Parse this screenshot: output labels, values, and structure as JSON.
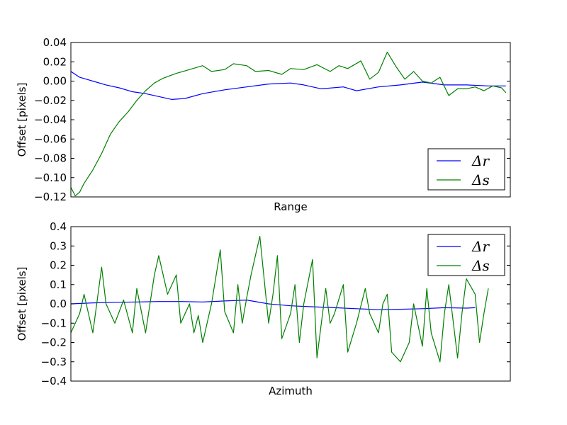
{
  "chart_data": [
    {
      "type": "line",
      "xlabel": "Range",
      "ylabel": "Offset [pixels]",
      "ylim": [
        -0.12,
        0.04
      ],
      "yticks": [
        "0.04",
        "0.02",
        "0.00",
        "−0.02",
        "−0.04",
        "−0.06",
        "−0.08",
        "−0.10",
        "−0.12"
      ],
      "xticks_visible": false,
      "legend_position": "lower-right",
      "xlim": [
        0,
        1
      ],
      "series": [
        {
          "name": "Δr",
          "color": "#0000ff",
          "x": [
            0.0,
            0.02,
            0.05,
            0.08,
            0.11,
            0.14,
            0.17,
            0.2,
            0.23,
            0.26,
            0.3,
            0.35,
            0.4,
            0.45,
            0.5,
            0.53,
            0.57,
            0.62,
            0.65,
            0.7,
            0.75,
            0.8,
            0.85,
            0.9,
            0.95,
            0.99
          ],
          "values": [
            0.01,
            0.004,
            0.0,
            -0.004,
            -0.007,
            -0.011,
            -0.013,
            -0.016,
            -0.019,
            -0.018,
            -0.013,
            -0.009,
            -0.006,
            -0.003,
            -0.002,
            -0.004,
            -0.008,
            -0.006,
            -0.01,
            -0.006,
            -0.004,
            -0.001,
            -0.004,
            -0.004,
            -0.005,
            -0.005
          ]
        },
        {
          "name": "Δs",
          "color": "#008000",
          "x": [
            0.0,
            0.01,
            0.02,
            0.03,
            0.05,
            0.07,
            0.09,
            0.11,
            0.13,
            0.15,
            0.17,
            0.19,
            0.21,
            0.24,
            0.27,
            0.3,
            0.32,
            0.35,
            0.37,
            0.4,
            0.42,
            0.45,
            0.48,
            0.5,
            0.53,
            0.56,
            0.59,
            0.61,
            0.63,
            0.66,
            0.68,
            0.7,
            0.72,
            0.74,
            0.76,
            0.78,
            0.8,
            0.82,
            0.84,
            0.86,
            0.88,
            0.9,
            0.92,
            0.94,
            0.96,
            0.98,
            0.99
          ],
          "values": [
            -0.11,
            -0.119,
            -0.115,
            -0.106,
            -0.092,
            -0.075,
            -0.055,
            -0.042,
            -0.032,
            -0.02,
            -0.01,
            -0.002,
            0.003,
            0.008,
            0.012,
            0.016,
            0.01,
            0.012,
            0.018,
            0.016,
            0.01,
            0.011,
            0.007,
            0.013,
            0.012,
            0.017,
            0.01,
            0.016,
            0.013,
            0.021,
            0.002,
            0.009,
            0.03,
            0.015,
            0.002,
            0.01,
            0.0,
            -0.002,
            0.004,
            -0.015,
            -0.008,
            -0.008,
            -0.006,
            -0.01,
            -0.005,
            -0.007,
            -0.012
          ]
        }
      ]
    },
    {
      "type": "line",
      "xlabel": "Azimuth",
      "ylabel": "Offset [pixels]",
      "ylim": [
        -0.4,
        0.4
      ],
      "yticks": [
        "0.4",
        "0.3",
        "0.2",
        "0.1",
        "0.0",
        "−0.1",
        "−0.2",
        "−0.3",
        "−0.4"
      ],
      "xticks_visible": false,
      "legend_position": "upper-right",
      "xlim": [
        0,
        1
      ],
      "series": [
        {
          "name": "Δr",
          "color": "#0000ff",
          "x": [
            0.0,
            0.05,
            0.1,
            0.15,
            0.2,
            0.25,
            0.3,
            0.35,
            0.4,
            0.45,
            0.5,
            0.55,
            0.6,
            0.65,
            0.7,
            0.75,
            0.8,
            0.85,
            0.9,
            0.92
          ],
          "values": [
            0.0,
            0.005,
            0.008,
            0.01,
            0.012,
            0.012,
            0.01,
            0.015,
            0.02,
            0.0,
            -0.01,
            -0.015,
            -0.02,
            -0.025,
            -0.03,
            -0.028,
            -0.025,
            -0.02,
            -0.022,
            -0.02
          ]
        },
        {
          "name": "Δs",
          "color": "#008000",
          "x": [
            0.0,
            0.02,
            0.03,
            0.05,
            0.07,
            0.08,
            0.1,
            0.12,
            0.14,
            0.15,
            0.17,
            0.19,
            0.2,
            0.22,
            0.24,
            0.25,
            0.27,
            0.28,
            0.29,
            0.3,
            0.32,
            0.34,
            0.35,
            0.37,
            0.38,
            0.39,
            0.4,
            0.41,
            0.43,
            0.45,
            0.46,
            0.47,
            0.48,
            0.5,
            0.51,
            0.52,
            0.53,
            0.55,
            0.56,
            0.58,
            0.59,
            0.6,
            0.62,
            0.63,
            0.65,
            0.67,
            0.68,
            0.7,
            0.71,
            0.72,
            0.73,
            0.75,
            0.77,
            0.78,
            0.8,
            0.81,
            0.82,
            0.84,
            0.85,
            0.86,
            0.88,
            0.89,
            0.9,
            0.92,
            0.93,
            0.94,
            0.95
          ],
          "values": [
            -0.15,
            -0.05,
            0.05,
            -0.15,
            0.19,
            0.0,
            -0.1,
            0.02,
            -0.15,
            0.08,
            -0.15,
            0.15,
            0.25,
            0.05,
            0.15,
            -0.1,
            0.0,
            -0.15,
            -0.06,
            -0.2,
            0.0,
            0.28,
            -0.04,
            -0.15,
            0.1,
            -0.1,
            0.03,
            0.15,
            0.35,
            -0.1,
            0.05,
            0.25,
            -0.18,
            -0.05,
            0.1,
            -0.2,
            0.0,
            0.23,
            -0.28,
            0.08,
            -0.1,
            -0.05,
            0.1,
            -0.25,
            -0.1,
            0.08,
            -0.05,
            -0.15,
            0.0,
            0.05,
            -0.25,
            -0.3,
            -0.2,
            0.0,
            -0.22,
            0.08,
            -0.15,
            -0.3,
            -0.05,
            0.1,
            -0.28,
            -0.05,
            0.13,
            0.05,
            -0.2,
            -0.05,
            0.08
          ]
        }
      ]
    }
  ]
}
